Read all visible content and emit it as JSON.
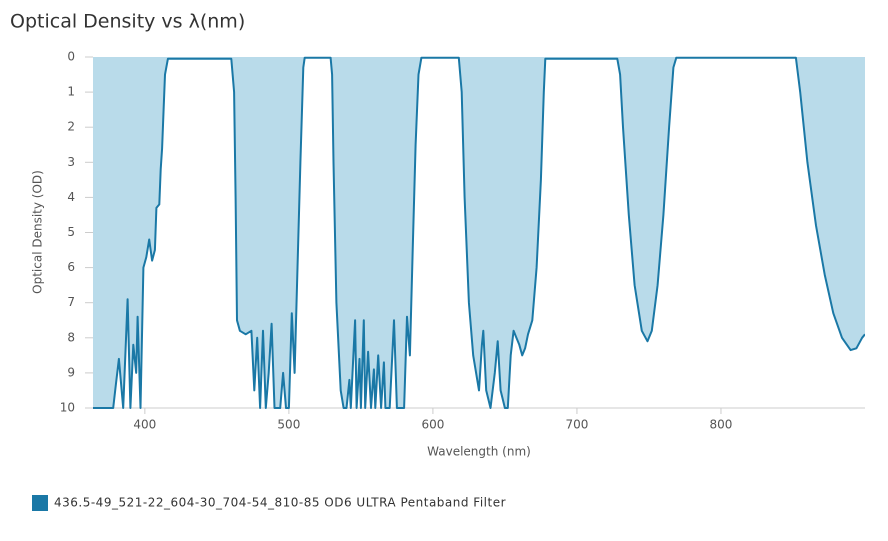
{
  "chart_data": {
    "type": "area",
    "title": "Optical Density vs λ(nm)",
    "xlabel": "Wavelength (nm)",
    "ylabel": "Optical Density (OD)",
    "xlim": [
      364,
      900
    ],
    "xticks": [
      400,
      500,
      600,
      700,
      800
    ],
    "ylim": [
      10,
      0
    ],
    "yticks": [
      0,
      1,
      2,
      3,
      4,
      5,
      6,
      7,
      8,
      9,
      10
    ],
    "legend": "bottom-left",
    "x": [
      364,
      378,
      380,
      382,
      385,
      388,
      390,
      392,
      394,
      395,
      397,
      399,
      401,
      403,
      405,
      407,
      408,
      410,
      411,
      412,
      413,
      414,
      416,
      460,
      462,
      463,
      464,
      466,
      470,
      474,
      476,
      478,
      480,
      482,
      484,
      486,
      488,
      490,
      494,
      496,
      498,
      500,
      502,
      504,
      506,
      508,
      510,
      511,
      529,
      530,
      531,
      533,
      536,
      538,
      540,
      542,
      543,
      546,
      547,
      549,
      550,
      552,
      553,
      555,
      557,
      559,
      560,
      562,
      564,
      566,
      567,
      570,
      573,
      575,
      580,
      582,
      584,
      586,
      588,
      590,
      592,
      618,
      620,
      622,
      625,
      628,
      632,
      634,
      635,
      637,
      640,
      643,
      645,
      647,
      650,
      652,
      654,
      656,
      658,
      660,
      662,
      664,
      666,
      669,
      672,
      675,
      677,
      678,
      728,
      730,
      732,
      736,
      740,
      745,
      749,
      752,
      756,
      760,
      764,
      767,
      769,
      852,
      855,
      860,
      866,
      872,
      878,
      884,
      890,
      894,
      898,
      900
    ],
    "series": [
      {
        "name": "436.5-49_521-22_604-30_704-54_810-85 OD6 ULTRA Pentaband Filter",
        "color": "#1a78a6",
        "fill": "#b9dbea",
        "values": [
          10,
          10,
          9.3,
          8.6,
          10,
          6.9,
          10,
          8.2,
          9,
          7.4,
          10,
          6.0,
          5.7,
          5.2,
          5.8,
          5.5,
          4.3,
          4.2,
          3.2,
          2.6,
          1.5,
          0.5,
          0.05,
          0.05,
          1.0,
          4,
          7.5,
          7.8,
          7.9,
          7.8,
          9.5,
          8.0,
          10,
          7.8,
          10,
          9,
          7.6,
          10,
          10,
          9,
          10,
          10,
          7.3,
          9,
          6,
          3,
          0.3,
          0.02,
          0.02,
          0.5,
          3,
          7,
          9.5,
          10,
          10,
          9.2,
          10,
          7.5,
          10,
          8.6,
          10,
          7.5,
          10,
          8.4,
          10,
          8.9,
          10,
          8.5,
          10,
          8.7,
          10,
          10,
          7.5,
          10,
          10,
          7.4,
          8.5,
          5.5,
          2.5,
          0.5,
          0.02,
          0.02,
          1,
          4,
          7,
          8.5,
          9.5,
          8.2,
          7.8,
          9.5,
          10,
          9,
          8.1,
          9.5,
          10,
          10,
          8.5,
          7.8,
          8.0,
          8.2,
          8.5,
          8.3,
          7.9,
          7.5,
          6.0,
          3.5,
          1,
          0.05,
          0.05,
          0.5,
          2,
          4.5,
          6.5,
          7.8,
          8.1,
          7.8,
          6.5,
          4.5,
          2,
          0.3,
          0.02,
          0.02,
          1,
          3,
          4.8,
          6.2,
          7.3,
          8.0,
          8.35,
          8.3,
          8.0,
          7.9
        ]
      }
    ]
  }
}
